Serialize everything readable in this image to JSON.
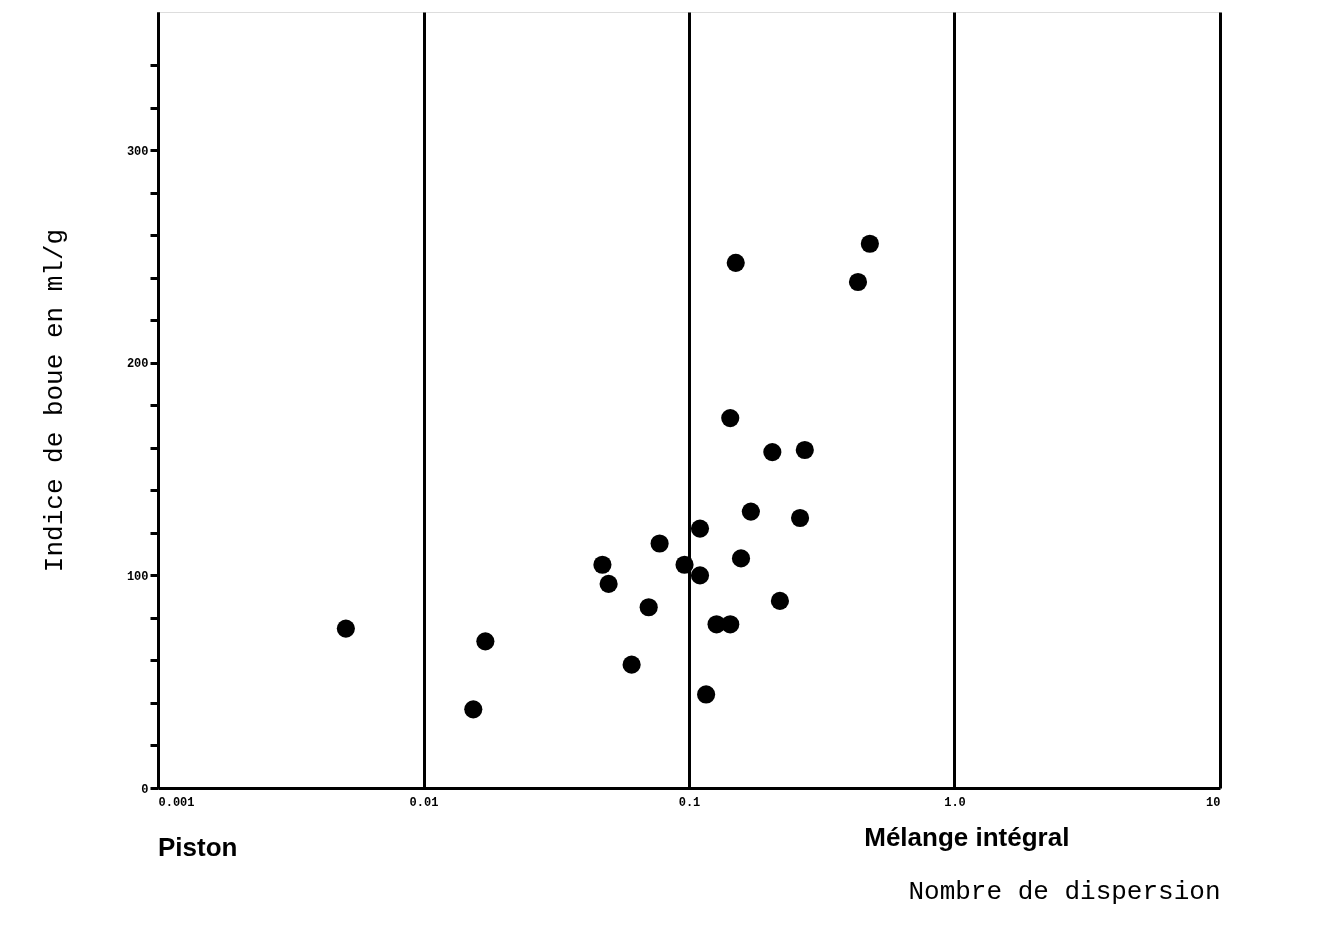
{
  "chart_data": {
    "type": "scatter",
    "xlabel": "Nombre de dispersion",
    "ylabel": "Indice de boue en ml/g",
    "annotations": [
      "Piston",
      "Mélange intégral"
    ],
    "log": "x",
    "grid": "x",
    "marker": "circle",
    "xlim": [
      0.001,
      10
    ],
    "ylim": [
      0,
      365
    ],
    "xticks": [
      0.001,
      0.01,
      0.1,
      {
        "value": 1,
        "label": "1.0"
      },
      10
    ],
    "yticks": [
      0,
      {
        "value": 20,
        "label": null
      },
      {
        "value": 40,
        "label": null
      },
      {
        "value": 60,
        "label": null
      },
      {
        "value": 80,
        "label": null
      },
      100,
      {
        "value": 120,
        "label": null
      },
      {
        "value": 140,
        "label": null
      },
      {
        "value": 160,
        "label": null
      },
      {
        "value": 180,
        "label": null
      },
      200,
      {
        "value": 220,
        "label": null
      },
      {
        "value": 240,
        "label": null
      },
      {
        "value": 260,
        "label": null
      },
      {
        "value": 280,
        "label": null
      },
      300,
      {
        "value": 320,
        "label": null
      },
      {
        "value": 340,
        "label": null
      }
    ],
    "series": [
      {
        "color": "#000000",
        "x": [
          0.0051,
          0.0171,
          0.0154,
          0.0472,
          0.0498,
          0.0608,
          0.0705,
          0.0775,
          0.0962,
          0.11,
          0.11,
          0.116,
          0.127,
          0.143,
          0.143,
          0.15,
          0.157,
          0.171,
          0.206,
          0.22,
          0.262,
          0.273,
          0.433,
          0.48
        ],
        "values": [
          75,
          69,
          37,
          105,
          96,
          58,
          85,
          115,
          105,
          122,
          100,
          44,
          77,
          77,
          174,
          247,
          108,
          130,
          158,
          88,
          127,
          159,
          238,
          256
        ]
      }
    ]
  }
}
